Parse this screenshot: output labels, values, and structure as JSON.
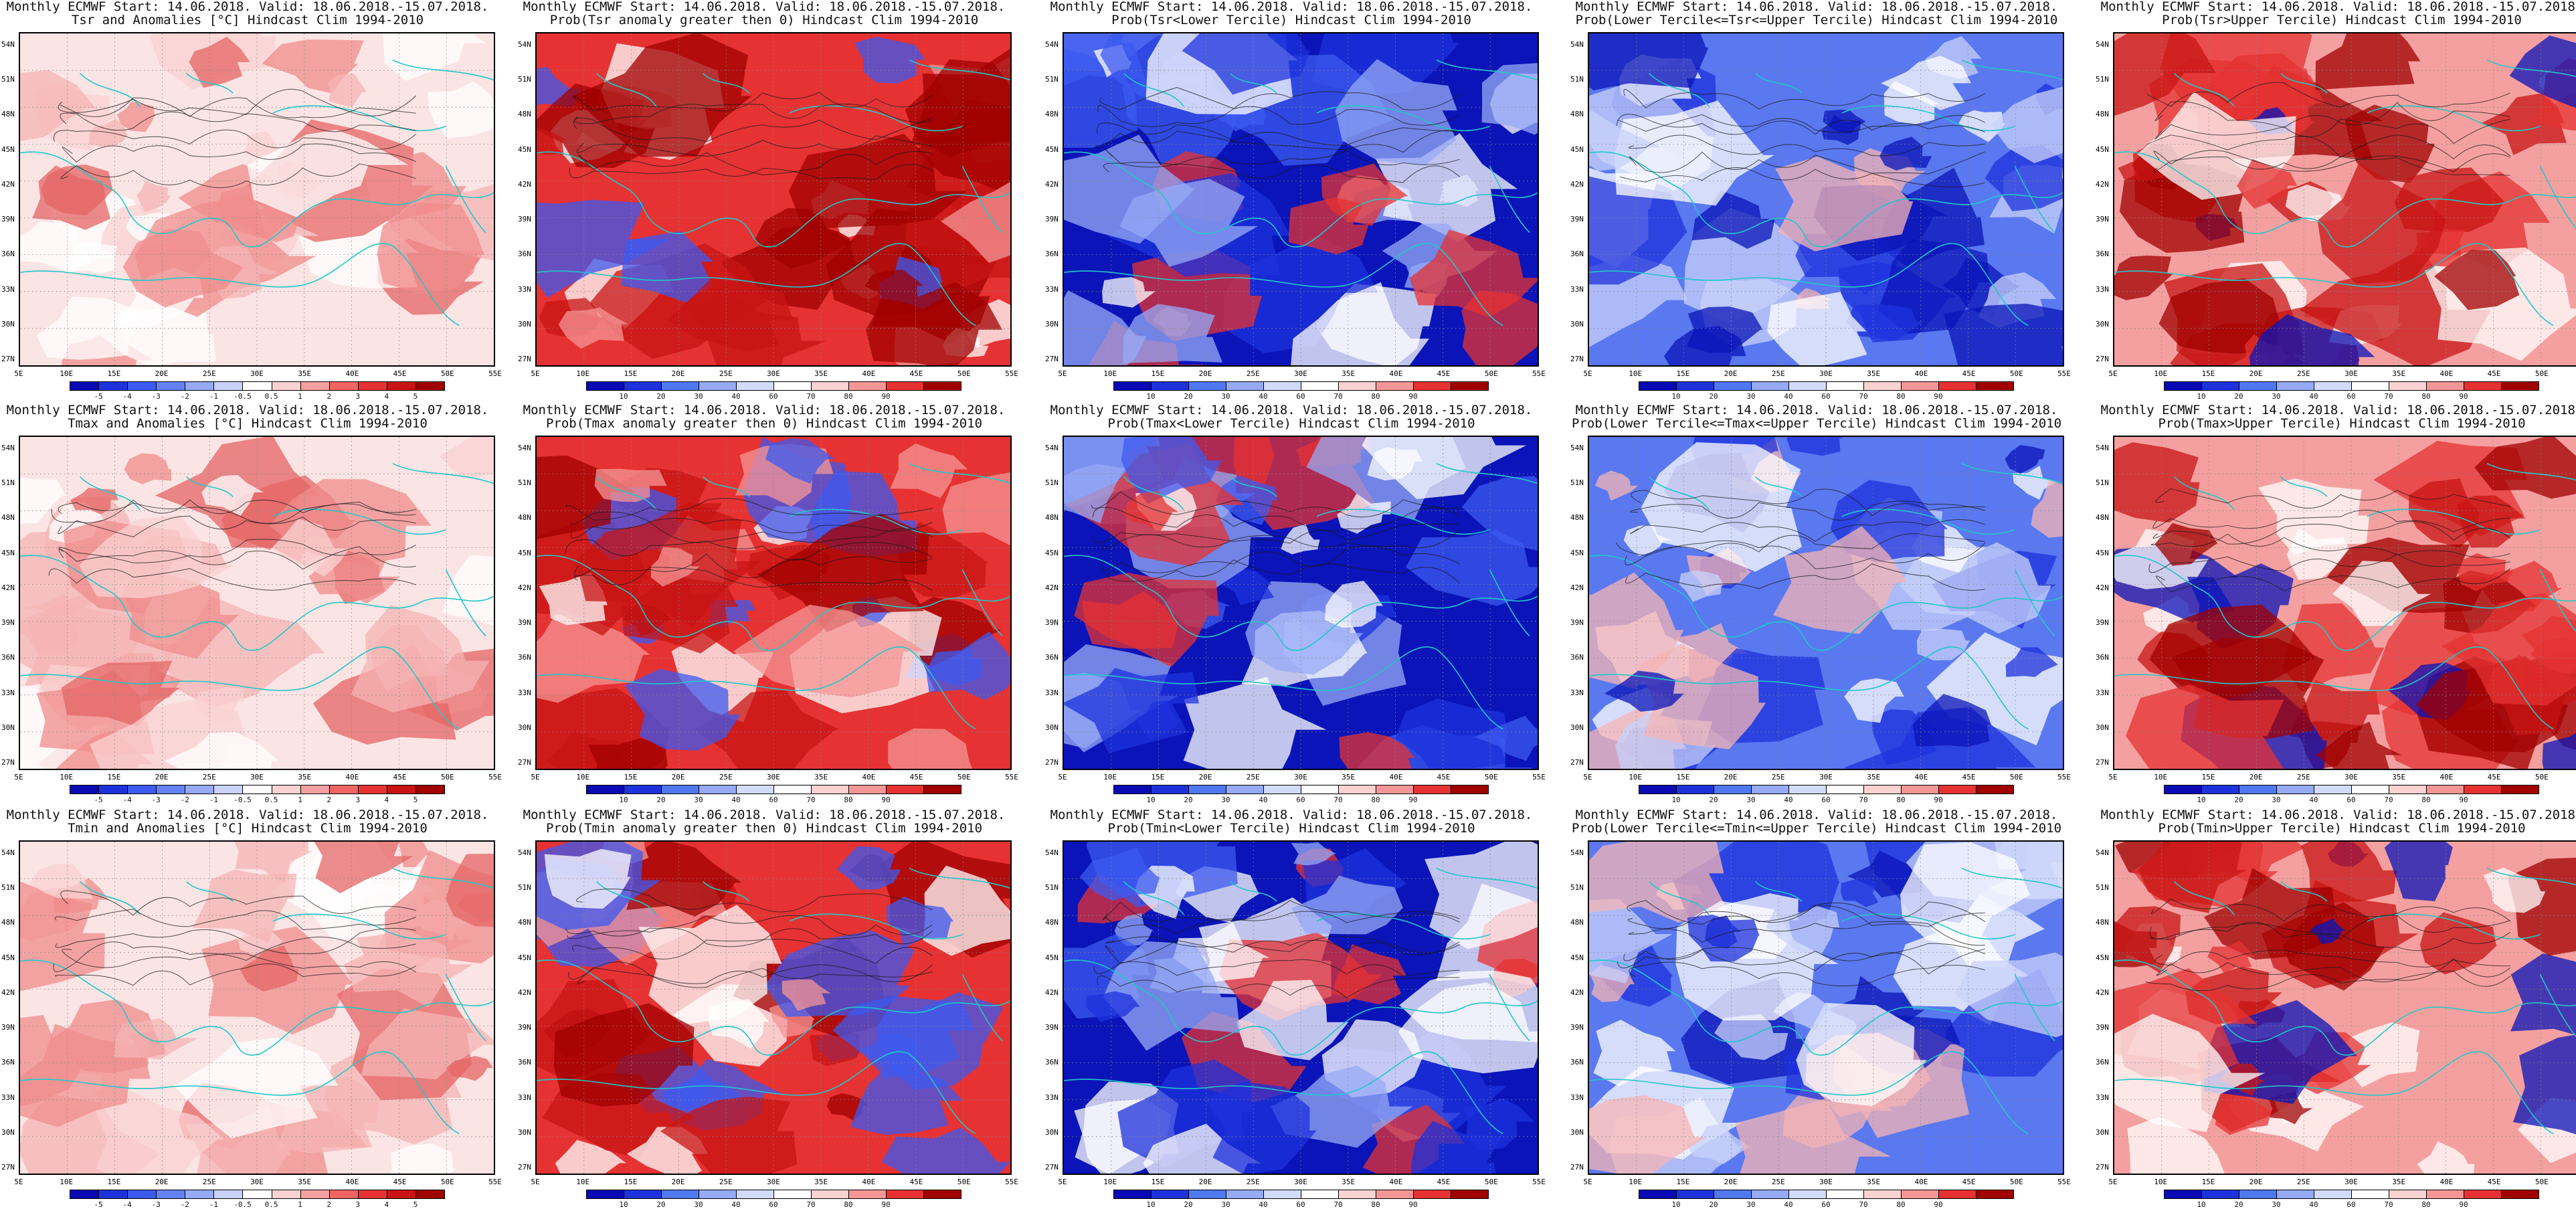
{
  "header": "Monthly ECMWF Start: 14.06.2018. Valid: 18.06.2018.-15.07.2018.",
  "lat_ticks": [
    "54N",
    "51N",
    "48N",
    "45N",
    "42N",
    "39N",
    "36N",
    "33N",
    "30N",
    "27N"
  ],
  "lon_ticks": [
    "5E",
    "10E",
    "15E",
    "20E",
    "25E",
    "30E",
    "35E",
    "40E",
    "45E",
    "50E",
    "55E"
  ],
  "colors": {
    "coast": "#20c8c8",
    "contour": "#1a1a1a",
    "red_dark": "#b30000",
    "red": "#e62020",
    "red_light": "#f5a6a6",
    "blue_dark": "#0a14b8",
    "blue": "#3850e6",
    "blue_light": "#b8c4f5"
  },
  "colorbars": {
    "anomaly": {
      "labels": [
        "-5",
        "-4",
        "-3",
        "-2",
        "-1",
        "-0.5",
        "0.5",
        "1",
        "2",
        "3",
        "4",
        "5"
      ],
      "colors": [
        "#0a0ab4",
        "#1e32dc",
        "#3c5af0",
        "#6482f5",
        "#96aaf5",
        "#c8d2fa",
        "#ffffff",
        "#fad2d2",
        "#f5a0a0",
        "#f06464",
        "#e63232",
        "#c81414",
        "#a00000"
      ]
    },
    "probability": {
      "labels": [
        "10",
        "20",
        "30",
        "40",
        "60",
        "70",
        "80",
        "90"
      ],
      "colors": [
        "#0a0ab4",
        "#1e32dc",
        "#5078f0",
        "#96aaf5",
        "#d2dcfa",
        "#ffffff",
        "#fad2d2",
        "#f59696",
        "#e63232",
        "#a00000"
      ]
    }
  },
  "panels": [
    [
      {
        "title2": "Tsr and Anomalies [°C] Hindcast Clim 1994-2010",
        "scheme": "anomaly",
        "fill": "pale_red",
        "cb": "anomaly"
      },
      {
        "title2": "Prob(Tsr anomaly greater then 0) Hindcast Clim 1994-2010",
        "scheme": "prob",
        "fill": "red",
        "cb": "probability"
      },
      {
        "title2": "Prob(Tsr<Lower Tercile) Hindcast Clim 1994-2010",
        "scheme": "prob",
        "fill": "blue",
        "cb": "probability"
      },
      {
        "title2": "Prob(Lower Tercile<=Tsr<=Upper Tercile) Hindcast Clim 1994-2010",
        "scheme": "prob",
        "fill": "mixed_blue",
        "cb": "probability"
      },
      {
        "title2": "Prob(Tsr>Upper Tercile) Hindcast Clim 1994-2010",
        "scheme": "prob",
        "fill": "mixed_red",
        "cb": "probability"
      }
    ],
    [
      {
        "title2": "Tmax and Anomalies [°C] Hindcast Clim 1994-2010",
        "scheme": "anomaly",
        "fill": "pale_red",
        "cb": "anomaly"
      },
      {
        "title2": "Prob(Tmax anomaly greater then 0) Hindcast Clim 1994-2010",
        "scheme": "prob",
        "fill": "red",
        "cb": "probability"
      },
      {
        "title2": "Prob(Tmax<Lower Tercile) Hindcast Clim 1994-2010",
        "scheme": "prob",
        "fill": "blue",
        "cb": "probability"
      },
      {
        "title2": "Prob(Lower Tercile<=Tmax<=Upper Tercile) Hindcast Clim 1994-2010",
        "scheme": "prob",
        "fill": "mixed_blue",
        "cb": "probability"
      },
      {
        "title2": "Prob(Tmax>Upper Tercile) Hindcast Clim 1994-2010",
        "scheme": "prob",
        "fill": "mixed_red",
        "cb": "probability"
      }
    ],
    [
      {
        "title2": "Tmin and Anomalies [°C] Hindcast Clim 1994-2010",
        "scheme": "anomaly",
        "fill": "pale_red",
        "cb": "anomaly"
      },
      {
        "title2": "Prob(Tmin anomaly greater then 0) Hindcast Clim 1994-2010",
        "scheme": "prob",
        "fill": "red",
        "cb": "probability"
      },
      {
        "title2": "Prob(Tmin<Lower Tercile) Hindcast Clim 1994-2010",
        "scheme": "prob",
        "fill": "blue",
        "cb": "probability"
      },
      {
        "title2": "Prob(Lower Tercile<=Tmin<=Upper Tercile) Hindcast Clim 1994-2010",
        "scheme": "prob",
        "fill": "mixed_blue",
        "cb": "probability"
      },
      {
        "title2": "Prob(Tmin>Upper Tercile) Hindcast Clim 1994-2010",
        "scheme": "prob",
        "fill": "mixed_red",
        "cb": "probability"
      }
    ]
  ]
}
